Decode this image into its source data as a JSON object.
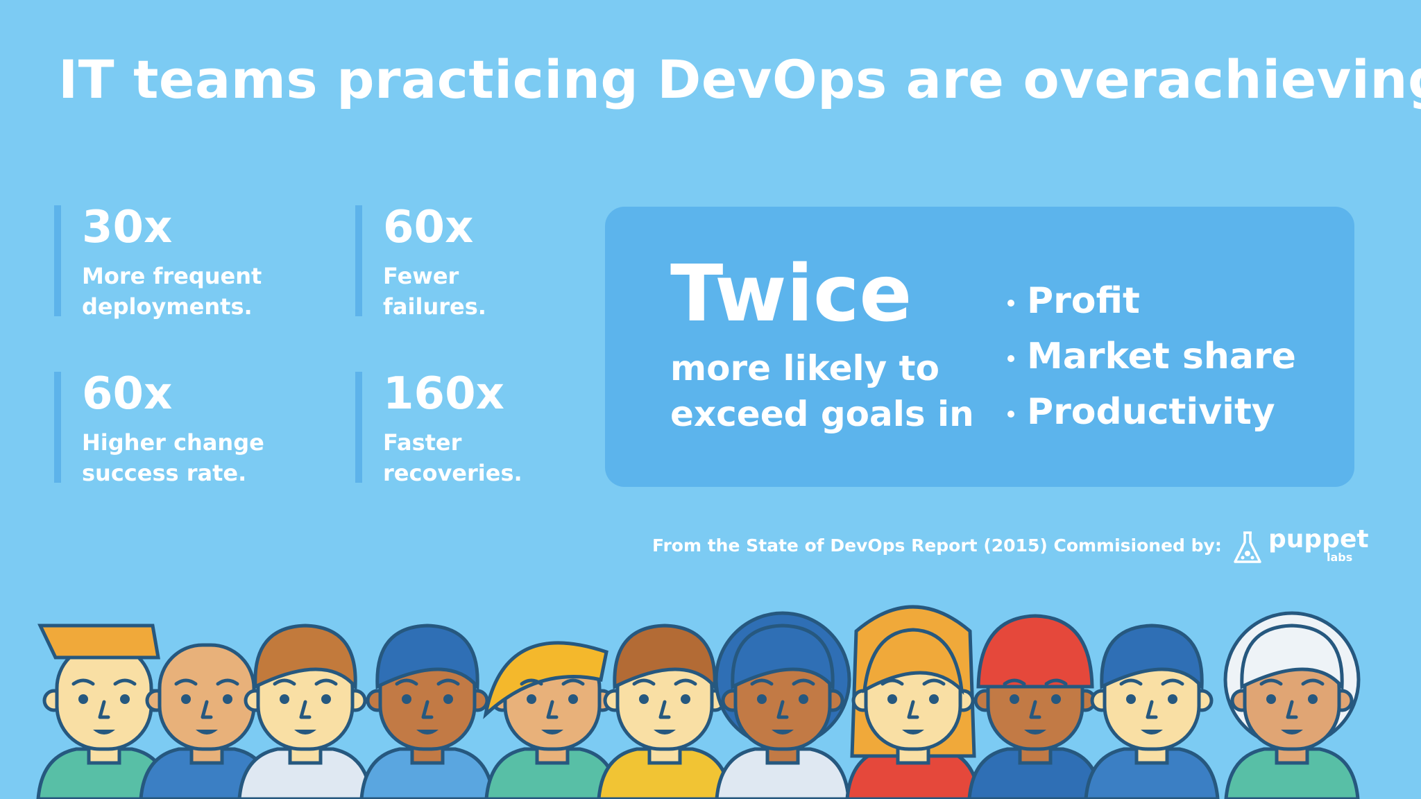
{
  "title": "IT teams practicing DevOps are overachieving!",
  "stats": [
    {
      "value": "30x",
      "line1": "More frequent",
      "line2": "deployments."
    },
    {
      "value": "60x",
      "line1": "Fewer",
      "line2": "failures."
    },
    {
      "value": "60x",
      "line1": "Higher change",
      "line2": "success rate."
    },
    {
      "value": "160x",
      "line1": "Faster",
      "line2": "recoveries."
    }
  ],
  "panel": {
    "headline": "Twice",
    "line1": "more likely to",
    "line2": "exceed goals in",
    "goals": [
      "Profit",
      "Market share",
      "Productivity"
    ]
  },
  "source": "From the State of DevOps Report (2015) Commisioned by:",
  "logo": {
    "name": "puppet",
    "sub": "labs",
    "icon": "puppet-flask-icon"
  },
  "colors": {
    "background": "#7ccbf3",
    "panel": "#5cb4ec",
    "accent_bar": "#5db3ea"
  },
  "people_icons": [
    "person-1-icon",
    "person-2-icon",
    "person-3-icon",
    "person-4-icon",
    "person-5-icon",
    "person-6-icon",
    "person-7-icon",
    "person-8-icon",
    "person-9-icon",
    "person-10-icon",
    "person-11-icon"
  ]
}
